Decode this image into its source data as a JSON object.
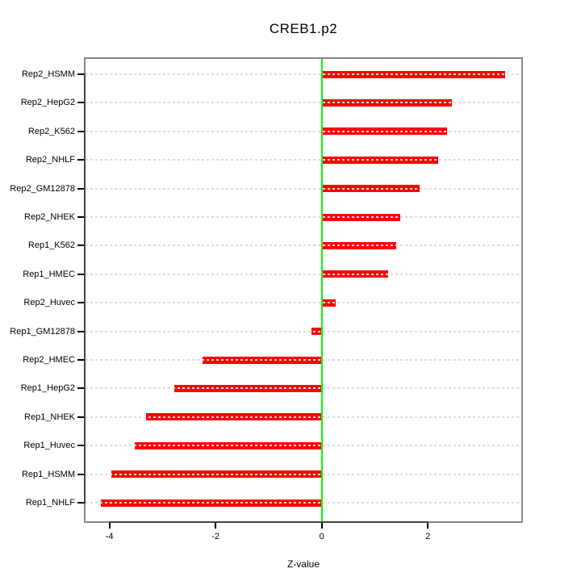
{
  "title": "CREB1.p2",
  "xlabel": "Z-value",
  "chart_data": {
    "type": "bar",
    "orientation": "horizontal",
    "title": "CREB1.p2",
    "xlabel": "Z-value",
    "ylabel": "",
    "categories": [
      "Rep2_HSMM",
      "Rep2_HepG2",
      "Rep2_K562",
      "Rep2_NHLF",
      "Rep2_GM12878",
      "Rep2_NHEK",
      "Rep1_K562",
      "Rep1_HMEC",
      "Rep2_Huvec",
      "Rep1_GM12878",
      "Rep2_HMEC",
      "Rep1_HepG2",
      "Rep1_NHEK",
      "Rep1_Huvec",
      "Rep1_HSMM",
      "Rep1_NHLF"
    ],
    "values": [
      3.46,
      2.46,
      2.36,
      2.19,
      1.84,
      1.48,
      1.41,
      1.25,
      0.27,
      -0.2,
      -2.25,
      -2.78,
      -3.31,
      -3.53,
      -3.96,
      -4.16
    ],
    "x_ticks": [
      -4,
      -2,
      0,
      2
    ],
    "x_tick_labels": [
      "-4",
      "-2",
      "0",
      "2"
    ],
    "xlim": [
      -4.45,
      3.76
    ],
    "grid": true,
    "legend": false,
    "zero_reference_line": 0,
    "colors": {
      "bar": "#ff0000",
      "zero_line": "#00ff00",
      "gridline": "#dcdcdc",
      "box_border": "#888888",
      "axis_line": "#444444",
      "text": "#000000",
      "background": "#ffffff"
    }
  }
}
